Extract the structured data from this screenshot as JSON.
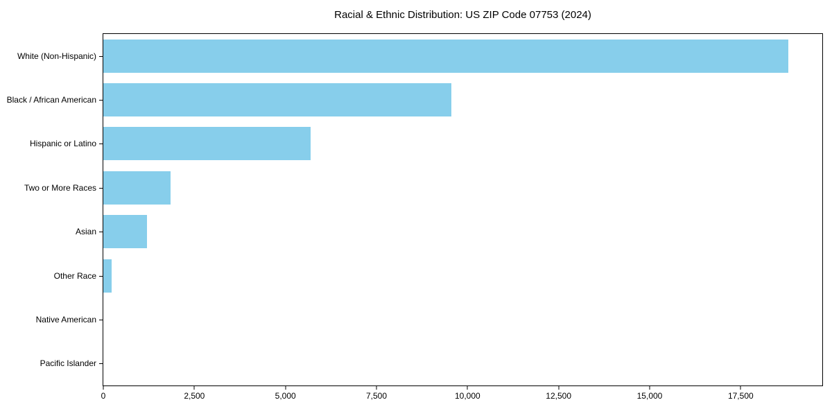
{
  "figure": {
    "background": "#ffffff",
    "text_color": "#000000",
    "spine_color": "#000000"
  },
  "chart_data": {
    "type": "bar",
    "orientation": "horizontal",
    "title": "Racial & Ethnic Distribution: US ZIP Code 07753 (2024)",
    "categories": [
      "White (Non-Hispanic)",
      "Black / African American",
      "Hispanic or Latino",
      "Two or More Races",
      "Asian",
      "Other Race",
      "Native American",
      "Pacific Islander"
    ],
    "values": [
      18800,
      9550,
      5700,
      1840,
      1190,
      230,
      0,
      0
    ],
    "bar_color": "#87CEEB",
    "xlabel": "",
    "ylabel": "",
    "xlim": [
      0,
      19740
    ],
    "xticks": [
      0,
      2500,
      5000,
      7500,
      10000,
      12500,
      15000,
      17500
    ],
    "xtick_labels": [
      "0",
      "2,500",
      "5,000",
      "7,500",
      "10,000",
      "12,500",
      "15,000",
      "17,500"
    ],
    "grid": false,
    "legend": null
  }
}
